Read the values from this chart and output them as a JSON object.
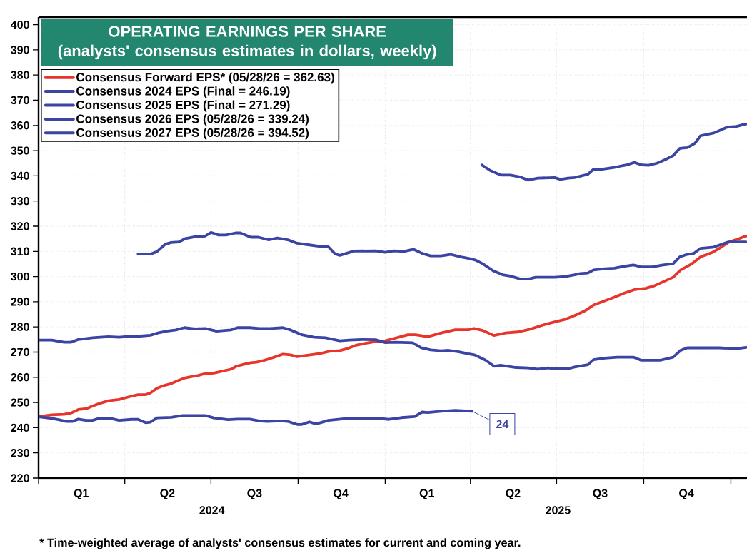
{
  "chart_data": {
    "type": "line",
    "title": "OPERATING EARNINGS PER SHARE",
    "subtitle": "(analysts' consensus estimates in dollars, weekly)",
    "xlim": [
      "2024-01-01",
      "2026-01-18"
    ],
    "ylim": [
      220,
      403
    ],
    "yticks": [
      220,
      230,
      240,
      250,
      260,
      270,
      280,
      290,
      300,
      310,
      320,
      330,
      340,
      350,
      360,
      370,
      380,
      390,
      400
    ],
    "xticks": [
      {
        "value": "2024-01-01",
        "label": null
      },
      {
        "value": "2024-02-15",
        "label": "Q1"
      },
      {
        "value": "2024-04-01",
        "label": null
      },
      {
        "value": "2024-05-16",
        "label": "Q2"
      },
      {
        "value": "2024-07-01",
        "label": null
      },
      {
        "value": "2024-08-16",
        "label": "Q3"
      },
      {
        "value": "2024-10-01",
        "label": null
      },
      {
        "value": "2024-11-15",
        "label": "Q4"
      },
      {
        "value": "2025-01-01",
        "label": null
      },
      {
        "value": "2025-02-14",
        "label": "Q1"
      },
      {
        "value": "2025-04-01",
        "label": null
      },
      {
        "value": "2025-05-16",
        "label": "Q2"
      },
      {
        "value": "2025-07-01",
        "label": null
      },
      {
        "value": "2025-08-16",
        "label": "Q3"
      },
      {
        "value": "2025-10-01",
        "label": null
      },
      {
        "value": "2025-11-15",
        "label": "Q4"
      },
      {
        "value": "2026-01-01",
        "label": null
      }
    ],
    "grid": true,
    "legend": "top left",
    "series": [
      {
        "name": "Consensus Forward EPS* (05/28/26 = 362.63)",
        "color": "#e8352b",
        "x": [
          "2024-01-01",
          "2024-01-15",
          "2024-01-28",
          "2024-02-04",
          "2024-02-12",
          "2024-02-21",
          "2024-02-27",
          "2024-03-06",
          "2024-03-15",
          "2024-03-26",
          "2024-04-01",
          "2024-04-08",
          "2024-04-15",
          "2024-04-23",
          "2024-04-28",
          "2024-05-05",
          "2024-05-13",
          "2024-05-20",
          "2024-05-28",
          "2024-06-03",
          "2024-06-12",
          "2024-06-17",
          "2024-06-25",
          "2024-07-04",
          "2024-07-09",
          "2024-07-22",
          "2024-07-28",
          "2024-08-06",
          "2024-08-12",
          "2024-08-18",
          "2024-08-26",
          "2024-09-02",
          "2024-09-09",
          "2024-09-15",
          "2024-09-23",
          "2024-09-30",
          "2024-10-08",
          "2024-10-18",
          "2024-10-25",
          "2024-11-03",
          "2024-11-14",
          "2024-11-22",
          "2024-12-01",
          "2024-12-10",
          "2024-12-22",
          "2025-01-01",
          "2025-01-12",
          "2025-01-25",
          "2025-02-02",
          "2025-02-15",
          "2025-03-01",
          "2025-03-16",
          "2025-03-30",
          "2025-04-05",
          "2025-04-14",
          "2025-04-26",
          "2025-05-08",
          "2025-05-21",
          "2025-06-03",
          "2025-06-16",
          "2025-06-29",
          "2025-07-10",
          "2025-07-20",
          "2025-07-31",
          "2025-08-09",
          "2025-08-21",
          "2025-08-31",
          "2025-09-11",
          "2025-09-21",
          "2025-10-03",
          "2025-10-12",
          "2025-10-22",
          "2025-11-01",
          "2025-11-09",
          "2025-11-21",
          "2025-11-30",
          "2025-12-12",
          "2025-12-22",
          "2025-12-30",
          "2026-01-10",
          "2026-01-17"
        ],
        "values": [
          244.4,
          245.1,
          245.3,
          245.8,
          247.2,
          247.6,
          248.6,
          249.7,
          250.7,
          251.2,
          251.8,
          252.5,
          253.1,
          253.1,
          253.8,
          255.7,
          256.8,
          257.5,
          258.8,
          259.7,
          260.4,
          260.7,
          261.5,
          261.7,
          262.1,
          263.2,
          264.4,
          265.3,
          265.8,
          266.0,
          266.7,
          267.5,
          268.4,
          269.2,
          268.9,
          268.2,
          268.6,
          269.1,
          269.5,
          270.3,
          270.6,
          271.4,
          272.7,
          273.4,
          274.2,
          274.5,
          275.6,
          276.9,
          276.9,
          276.1,
          277.6,
          278.9,
          278.9,
          279.4,
          278.6,
          276.6,
          277.6,
          278.0,
          279.1,
          280.7,
          282.0,
          283.0,
          284.5,
          286.4,
          288.7,
          290.4,
          291.8,
          293.5,
          294.8,
          295.3,
          296.3,
          298.0,
          299.7,
          302.6,
          305.1,
          307.8,
          309.5,
          311.7,
          313.7,
          315.1,
          316.1
        ]
      },
      {
        "name": "Consensus 2024 EPS (Final = 246.19)",
        "color": "#3b44a3",
        "x": [
          "2024-01-01",
          "2024-01-15",
          "2024-01-23",
          "2024-01-30",
          "2024-02-06",
          "2024-02-12",
          "2024-02-20",
          "2024-02-27",
          "2024-03-04",
          "2024-03-18",
          "2024-03-26",
          "2024-04-08",
          "2024-04-15",
          "2024-04-23",
          "2024-04-28",
          "2024-05-05",
          "2024-05-20",
          "2024-06-01",
          "2024-06-25",
          "2024-07-04",
          "2024-07-19",
          "2024-07-29",
          "2024-08-11",
          "2024-08-21",
          "2024-08-29",
          "2024-09-13",
          "2024-09-20",
          "2024-09-30",
          "2024-10-05",
          "2024-10-13",
          "2024-10-20",
          "2024-11-02",
          "2024-11-22",
          "2024-12-22",
          "2025-01-05",
          "2025-01-18",
          "2025-02-01",
          "2025-02-09",
          "2025-02-15",
          "2025-03-01",
          "2025-03-16",
          "2025-04-03"
        ],
        "values": [
          244.3,
          243.7,
          243.1,
          242.5,
          242.5,
          243.4,
          242.9,
          242.9,
          243.6,
          243.6,
          242.9,
          243.3,
          243.3,
          242.0,
          242.2,
          243.9,
          244.1,
          244.8,
          244.8,
          243.9,
          243.2,
          243.4,
          243.4,
          242.7,
          242.5,
          242.7,
          242.5,
          241.3,
          241.3,
          242.3,
          241.5,
          242.9,
          243.7,
          243.8,
          243.3,
          244.0,
          244.4,
          246.2,
          246.0,
          246.5,
          246.9,
          246.5
        ]
      },
      {
        "name": "Consensus 2025 EPS (Final = 271.29)",
        "color": "#3b44a3",
        "x": [
          "2024-01-01",
          "2024-01-15",
          "2024-01-28",
          "2024-02-04",
          "2024-02-12",
          "2024-02-27",
          "2024-03-06",
          "2024-03-15",
          "2024-03-26",
          "2024-04-08",
          "2024-04-15",
          "2024-04-28",
          "2024-05-06",
          "2024-05-15",
          "2024-05-25",
          "2024-06-03",
          "2024-06-14",
          "2024-06-25",
          "2024-07-07",
          "2024-07-22",
          "2024-07-29",
          "2024-08-11",
          "2024-08-21",
          "2024-09-02",
          "2024-09-15",
          "2024-09-23",
          "2024-10-05",
          "2024-10-18",
          "2024-10-30",
          "2024-11-14",
          "2024-11-24",
          "2024-12-07",
          "2024-12-22",
          "2025-01-01",
          "2025-01-12",
          "2025-01-30",
          "2025-02-08",
          "2025-02-18",
          "2025-03-01",
          "2025-03-09",
          "2025-03-19",
          "2025-03-30",
          "2025-04-06",
          "2025-04-17",
          "2025-04-26",
          "2025-05-03",
          "2025-05-19",
          "2025-06-01",
          "2025-06-11",
          "2025-06-22",
          "2025-06-29",
          "2025-07-13",
          "2025-07-20",
          "2025-08-03",
          "2025-08-09",
          "2025-08-21",
          "2025-09-03",
          "2025-09-20",
          "2025-09-28",
          "2025-10-19",
          "2025-11-01",
          "2025-11-09",
          "2025-11-16",
          "2025-12-04",
          "2025-12-20",
          "2025-12-30",
          "2026-01-10",
          "2026-01-17"
        ],
        "values": [
          274.8,
          274.8,
          273.9,
          273.9,
          275.0,
          275.7,
          275.9,
          276.1,
          275.9,
          276.3,
          276.3,
          276.7,
          277.6,
          278.3,
          278.8,
          279.7,
          279.2,
          279.4,
          278.3,
          278.8,
          279.7,
          279.7,
          279.4,
          279.4,
          279.7,
          278.8,
          276.9,
          275.9,
          275.7,
          274.5,
          274.8,
          275.0,
          274.9,
          273.8,
          273.9,
          273.7,
          271.7,
          270.9,
          270.5,
          270.7,
          270.2,
          269.3,
          268.8,
          266.8,
          264.4,
          264.8,
          263.9,
          263.7,
          263.2,
          263.7,
          263.4,
          263.4,
          264.1,
          265.0,
          267.0,
          267.6,
          268.0,
          268.0,
          266.8,
          266.8,
          268.0,
          270.7,
          271.7,
          271.7,
          271.7,
          271.5,
          271.5,
          271.9
        ]
      },
      {
        "name": "Consensus 2026 EPS (05/28/26 = 339.24)",
        "color": "#3b44a3",
        "x": [
          "2024-04-15",
          "2024-04-29",
          "2024-05-05",
          "2024-05-14",
          "2024-05-20",
          "2024-05-28",
          "2024-06-04",
          "2024-06-14",
          "2024-06-25",
          "2024-07-01",
          "2024-07-09",
          "2024-07-17",
          "2024-07-27",
          "2024-08-01",
          "2024-08-12",
          "2024-08-20",
          "2024-08-31",
          "2024-09-09",
          "2024-09-20",
          "2024-09-30",
          "2024-10-10",
          "2024-10-23",
          "2024-11-02",
          "2024-11-09",
          "2024-11-14",
          "2024-11-29",
          "2024-12-22",
          "2025-01-01",
          "2025-01-10",
          "2025-01-21",
          "2025-01-31",
          "2025-02-09",
          "2025-02-18",
          "2025-03-01",
          "2025-03-11",
          "2025-03-22",
          "2025-03-30",
          "2025-04-06",
          "2025-04-14",
          "2025-04-25",
          "2025-05-05",
          "2025-05-13",
          "2025-05-24",
          "2025-06-01",
          "2025-06-09",
          "2025-06-29",
          "2025-07-10",
          "2025-07-20",
          "2025-07-26",
          "2025-08-03",
          "2025-08-09",
          "2025-08-21",
          "2025-08-31",
          "2025-09-11",
          "2025-09-20",
          "2025-09-28",
          "2025-10-10",
          "2025-10-20",
          "2025-11-01",
          "2025-11-08",
          "2025-11-16",
          "2025-11-23",
          "2025-11-30",
          "2025-12-14",
          "2025-12-29",
          "2026-01-17"
        ],
        "values": [
          309.0,
          309.0,
          309.9,
          312.9,
          313.5,
          313.7,
          315.1,
          315.8,
          316.1,
          317.5,
          316.5,
          316.5,
          317.3,
          317.3,
          315.6,
          315.6,
          314.6,
          315.3,
          314.6,
          313.2,
          312.7,
          312.0,
          311.8,
          309.0,
          308.4,
          310.1,
          310.2,
          309.6,
          310.2,
          310.0,
          310.8,
          309.2,
          308.2,
          308.2,
          308.8,
          307.8,
          307.2,
          306.6,
          305.1,
          302.3,
          300.7,
          300.2,
          299.0,
          299.0,
          299.7,
          299.7,
          300.0,
          300.7,
          301.2,
          301.4,
          302.6,
          303.1,
          303.3,
          304.1,
          304.6,
          303.9,
          303.8,
          304.5,
          305.1,
          307.8,
          308.8,
          309.2,
          311.2,
          311.7,
          313.7,
          313.7
        ]
      },
      {
        "name": "Consensus 2027 EPS (05/28/26 = 394.52)",
        "color": "#3b44a3",
        "x": [
          "2025-04-13",
          "2025-04-22",
          "2025-05-03",
          "2025-05-13",
          "2025-05-23",
          "2025-06-01",
          "2025-06-11",
          "2025-06-29",
          "2025-07-05",
          "2025-07-13",
          "2025-07-20",
          "2025-08-03",
          "2025-08-09",
          "2025-08-18",
          "2025-08-31",
          "2025-09-08",
          "2025-09-13",
          "2025-09-21",
          "2025-09-29",
          "2025-10-06",
          "2025-10-15",
          "2025-10-24",
          "2025-11-01",
          "2025-11-08",
          "2025-11-16",
          "2025-11-24",
          "2025-11-30",
          "2025-12-14",
          "2025-12-28",
          "2026-01-07",
          "2026-01-17"
        ],
        "values": [
          344.3,
          342.1,
          340.3,
          340.3,
          339.6,
          338.3,
          339.1,
          339.3,
          338.6,
          339.1,
          339.3,
          340.6,
          342.6,
          342.6,
          343.3,
          344.0,
          344.3,
          345.3,
          344.3,
          344.2,
          345.0,
          346.5,
          348.0,
          350.9,
          351.2,
          352.9,
          355.9,
          357.0,
          359.3,
          359.6,
          360.6
        ]
      }
    ],
    "annotations": [
      {
        "text": "24",
        "x": "2025-04-03",
        "y": 246.5
      },
      "2024",
      "2025",
      "* Time-weighted average of analysts' consensus estimates for current and coming year."
    ]
  }
}
